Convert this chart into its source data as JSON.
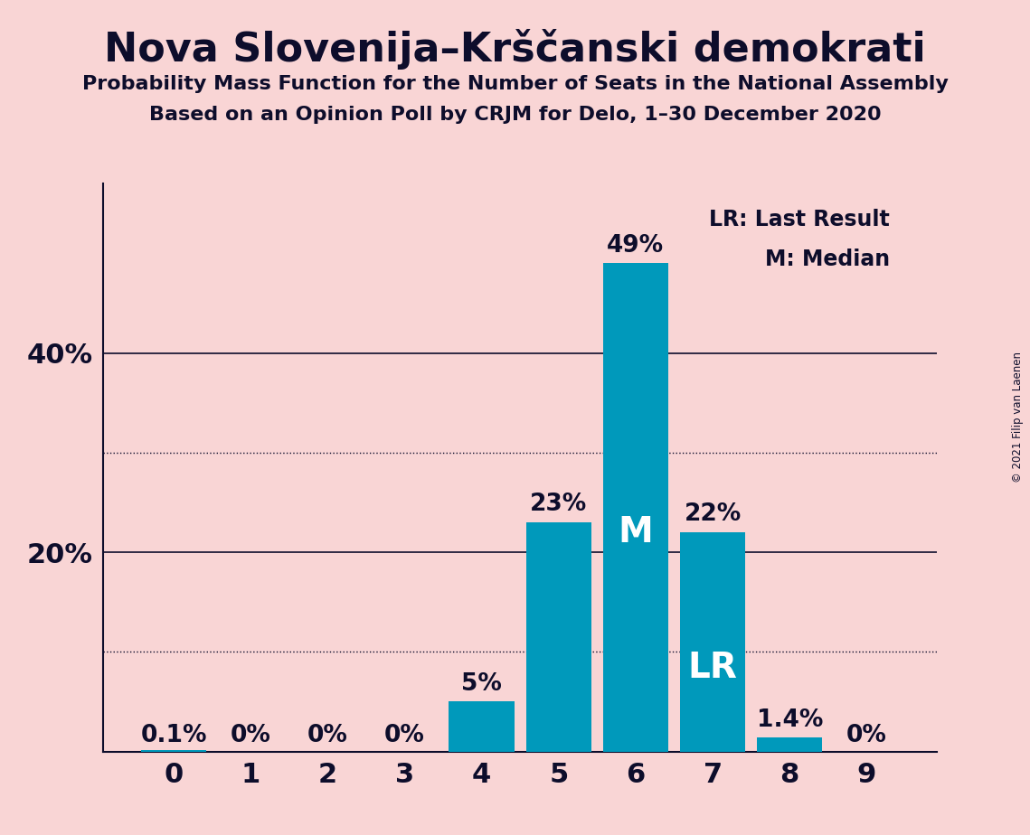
{
  "title": "Nova Slovenija–Krščanski demokrati",
  "subtitle1": "Probability Mass Function for the Number of Seats in the National Assembly",
  "subtitle2": "Based on an Opinion Poll by CRJM for Delo, 1–30 December 2020",
  "copyright": "© 2021 Filip van Laenen",
  "categories": [
    0,
    1,
    2,
    3,
    4,
    5,
    6,
    7,
    8,
    9
  ],
  "values": [
    0.001,
    0.0,
    0.0,
    0.0,
    0.05,
    0.23,
    0.49,
    0.22,
    0.014,
    0.0
  ],
  "bar_labels": [
    "0.1%",
    "0%",
    "0%",
    "0%",
    "5%",
    "23%",
    "49%",
    "22%",
    "1.4%",
    "0%"
  ],
  "bar_color": "#0099bb",
  "background_color": "#f9d5d5",
  "title_color": "#0d0d2b",
  "label_color": "#0d0d2b",
  "bar_text_color_outside": "#0d0d2b",
  "bar_text_color_inside": "#ffffff",
  "median_bar_idx": 6,
  "lr_bar_idx": 7,
  "median_label": "M",
  "lr_label": "LR",
  "yticks": [
    0.0,
    0.2,
    0.4
  ],
  "ytick_labels": [
    "",
    "20%",
    "40%"
  ],
  "solid_lines": [
    0.2,
    0.4
  ],
  "dotted_lines": [
    0.1,
    0.3
  ],
  "ylim": [
    0,
    0.57
  ],
  "legend_lr": "LR: Last Result",
  "legend_m": "M: Median"
}
